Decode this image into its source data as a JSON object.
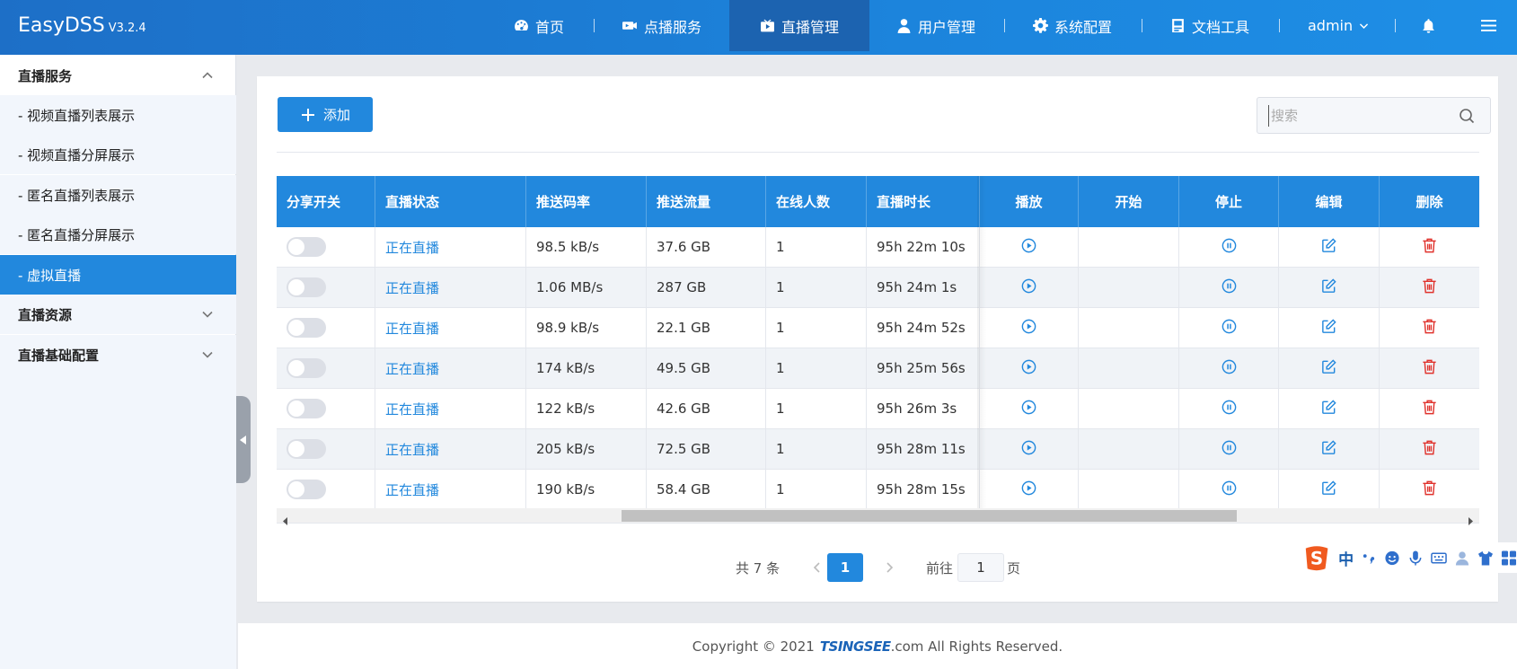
{
  "app": {
    "name": "EasyDSS",
    "version": "V3.2.4"
  },
  "nav": {
    "items": [
      {
        "label": "首页",
        "icon": "dashboard-icon"
      },
      {
        "label": "点播服务",
        "icon": "video-camera-icon"
      },
      {
        "label": "直播管理",
        "icon": "live-tv-icon",
        "active": true
      },
      {
        "label": "用户管理",
        "icon": "user-icon"
      },
      {
        "label": "系统配置",
        "icon": "gear-icon"
      },
      {
        "label": "文档工具",
        "icon": "document-icon"
      }
    ],
    "user": "admin"
  },
  "sidebar": {
    "groups": [
      {
        "label": "直播服务",
        "expanded": true,
        "items": [
          {
            "label": "- 视频直播列表展示"
          },
          {
            "label": "- 视频直播分屏展示"
          },
          {
            "label": "- 匿名直播列表展示"
          },
          {
            "label": "- 匿名直播分屏展示"
          },
          {
            "label": "- 虚拟直播",
            "active": true
          }
        ]
      },
      {
        "label": "直播资源",
        "expanded": false
      },
      {
        "label": "直播基础配置",
        "expanded": false
      }
    ]
  },
  "toolbar": {
    "add_label": "添加",
    "search_placeholder": "搜索"
  },
  "table": {
    "headers": [
      "分享开关",
      "直播状态",
      "推送码率",
      "推送流量",
      "在线人数",
      "直播时长",
      "播放",
      "开始",
      "停止",
      "编辑",
      "删除"
    ],
    "rows": [
      {
        "share": false,
        "status": "正在直播",
        "bitrate": "98.5 kB/s",
        "traffic": "37.6 GB",
        "online": "1",
        "duration": "95h 22m 10s"
      },
      {
        "share": false,
        "status": "正在直播",
        "bitrate": "1.06 MB/s",
        "traffic": "287 GB",
        "online": "1",
        "duration": "95h 24m 1s"
      },
      {
        "share": false,
        "status": "正在直播",
        "bitrate": "98.9 kB/s",
        "traffic": "22.1 GB",
        "online": "1",
        "duration": "95h 24m 52s"
      },
      {
        "share": false,
        "status": "正在直播",
        "bitrate": "174 kB/s",
        "traffic": "49.5 GB",
        "online": "1",
        "duration": "95h 25m 56s"
      },
      {
        "share": false,
        "status": "正在直播",
        "bitrate": "122 kB/s",
        "traffic": "42.6 GB",
        "online": "1",
        "duration": "95h 26m 3s"
      },
      {
        "share": false,
        "status": "正在直播",
        "bitrate": "205 kB/s",
        "traffic": "72.5 GB",
        "online": "1",
        "duration": "95h 28m 11s"
      },
      {
        "share": false,
        "status": "正在直播",
        "bitrate": "190 kB/s",
        "traffic": "58.4 GB",
        "online": "1",
        "duration": "95h 28m 15s"
      }
    ]
  },
  "pagination": {
    "total_text": "共 7 条",
    "current_page": "1",
    "goto_label": "前往",
    "goto_value": "1",
    "page_suffix": "页"
  },
  "ime": {
    "mode": "中"
  },
  "footer": {
    "prefix": "Copyright © 2021",
    "brand": "TSINGSEE",
    "suffix": ".com All Rights Reserved."
  },
  "colors": {
    "primary": "#2288dd",
    "header_dark": "#1c63b0",
    "delete_red": "#e0312b",
    "sidebar_sub_bg": "#f2f6fc"
  }
}
